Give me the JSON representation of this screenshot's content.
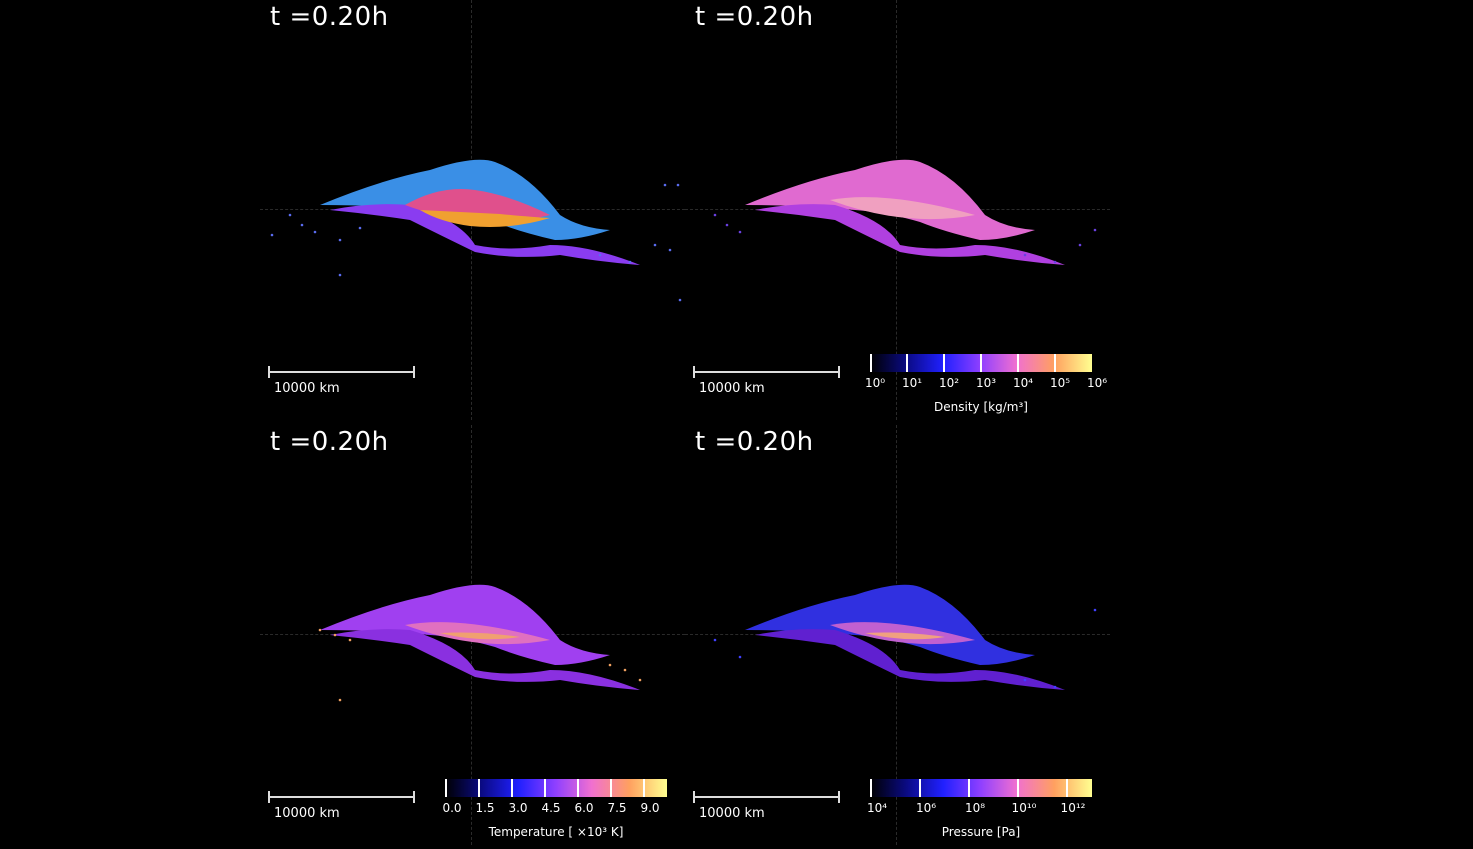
{
  "panels": [
    {
      "time_label": "t =0.20h",
      "scale_label": "10000 km",
      "colorbar": null
    },
    {
      "time_label": "t =0.20h",
      "scale_label": "10000 km",
      "colorbar": {
        "ticks": [
          "10⁰",
          "10¹",
          "10²",
          "10³",
          "10⁴",
          "10⁵",
          "10⁶"
        ],
        "title": "Density [kg/m³]"
      }
    },
    {
      "time_label": "t =0.20h",
      "scale_label": "10000 km",
      "colorbar": {
        "ticks": [
          "0.0",
          "1.5",
          "3.0",
          "4.5",
          "6.0",
          "7.5",
          "9.0"
        ],
        "title": "Temperature [ ×10³  K]"
      }
    },
    {
      "time_label": "t =0.20h",
      "scale_label": "10000 km",
      "colorbar": {
        "ticks": [
          "10⁴",
          "10⁶",
          "10⁸",
          "10¹⁰",
          "10¹²"
        ],
        "title": "Pressure [Pa]"
      }
    }
  ],
  "colors": {
    "background": "#000000",
    "material_mantle": "#3a8fe6",
    "material_core_outer": "#e0508c",
    "material_core_inner": "#f0a030",
    "material_debris": "#8a3cf0"
  }
}
